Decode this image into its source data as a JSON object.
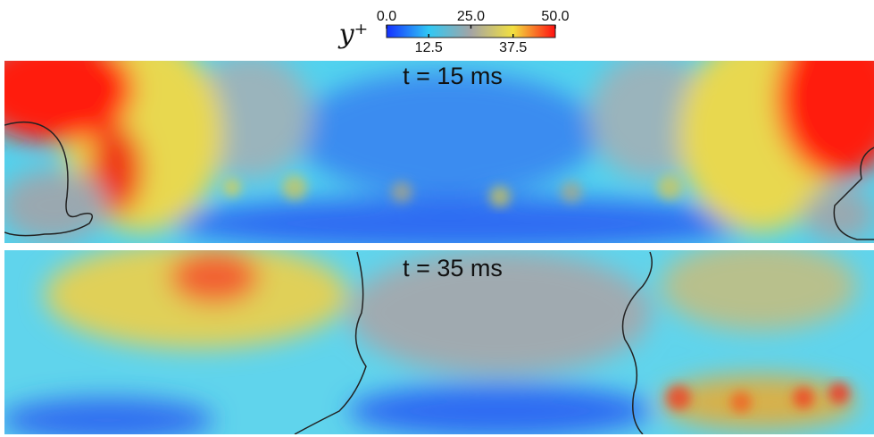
{
  "colorbar": {
    "label": "y⁺",
    "lim": [
      0,
      50
    ],
    "ticks": [
      {
        "value": 0,
        "label": "0.0"
      },
      {
        "value": 12.5,
        "label": "12.5"
      },
      {
        "value": 25,
        "label": "25.0"
      },
      {
        "value": 37.5,
        "label": "37.5"
      },
      {
        "value": 50,
        "label": "50.0"
      }
    ]
  },
  "panels": [
    {
      "label": "t = 15 ms"
    },
    {
      "label": "t = 35 ms"
    }
  ]
}
